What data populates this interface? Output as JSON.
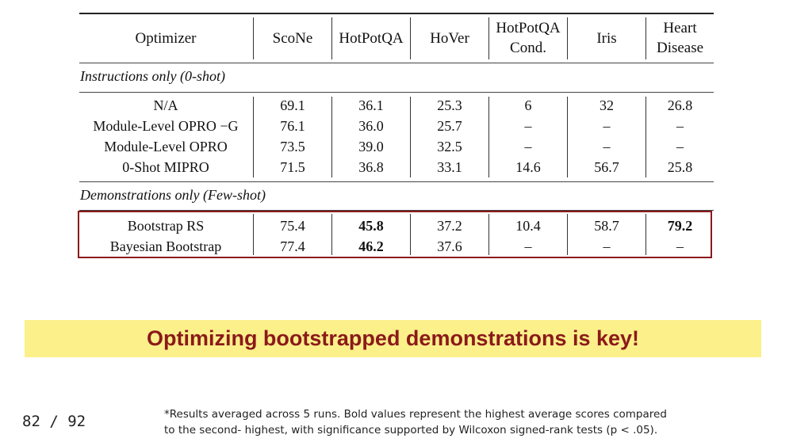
{
  "table": {
    "headers": [
      "Optimizer",
      "ScoNe",
      "HotPotQA",
      "HoVer",
      "HotPotQA Cond.",
      "Iris",
      "Heart Disease"
    ],
    "sections": [
      {
        "title": "Instructions only (0-shot)",
        "rows": [
          {
            "name": "N/A",
            "values": [
              "69.1",
              "36.1",
              "25.3",
              "6",
              "32",
              "26.8"
            ]
          },
          {
            "name": "Module-Level OPRO −G",
            "values": [
              "76.1",
              "36.0",
              "25.7",
              "–",
              "–",
              "–"
            ]
          },
          {
            "name": "Module-Level OPRO",
            "values": [
              "73.5",
              "39.0",
              "32.5",
              "–",
              "–",
              "–"
            ]
          },
          {
            "name": "0-Shot MIPRO",
            "values": [
              "71.5",
              "36.8",
              "33.1",
              "14.6",
              "56.7",
              "25.8"
            ]
          }
        ]
      },
      {
        "title": "Demonstrations only (Few-shot)",
        "rows": [
          {
            "name": "Bootstrap RS",
            "values": [
              "75.4",
              "45.8",
              "37.2",
              "10.4",
              "58.7",
              "79.2"
            ]
          },
          {
            "name": "Bayesian Bootstrap",
            "values": [
              "77.4",
              "46.2",
              "37.6",
              "–",
              "–",
              "–"
            ]
          }
        ]
      }
    ]
  },
  "banner_text": "Optimizing bootstrapped demonstrations is key!",
  "page_number": "82 / 92",
  "footnote": "*Results averaged across 5 runs. Bold values represent the highest average scores compared to the second- highest, with significance supported by Wilcoxon signed-rank tests (p < .05).",
  "colors": {
    "accent": "#8b1a1a",
    "banner_bg": "#fbf08a"
  }
}
